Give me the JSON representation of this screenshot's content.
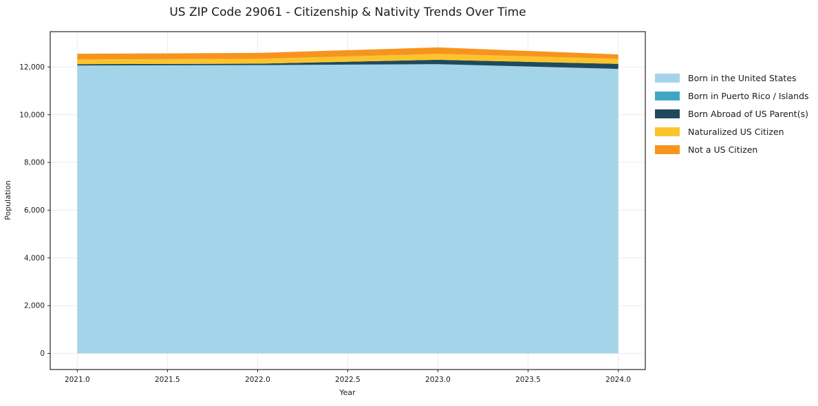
{
  "header": {
    "title": "US ZIP Code 29061 - Citizenship & Nativity Trends Over Time"
  },
  "axes": {
    "xlabel": "Year",
    "ylabel": "Population"
  },
  "legend": {
    "position": "outside-right",
    "items": [
      {
        "label": "Born in the United States",
        "color": "#a4d4e9"
      },
      {
        "label": "Born in Puerto Rico / Islands",
        "color": "#41a6c4"
      },
      {
        "label": "Born Abroad of US Parent(s)",
        "color": "#20495c"
      },
      {
        "label": "Naturalized US Citizen",
        "color": "#fcc42c"
      },
      {
        "label": "Not a US Citizen",
        "color": "#f7941e"
      }
    ]
  },
  "chart_data": {
    "type": "area",
    "stacked": true,
    "title": "US ZIP Code 29061 - Citizenship & Nativity Trends Over Time",
    "xlabel": "Year",
    "ylabel": "Population",
    "x": [
      2021,
      2022,
      2023,
      2024
    ],
    "series": [
      {
        "name": "Born in the United States",
        "color": "#a4d4e9",
        "values": [
          12060,
          12080,
          12120,
          11920
        ]
      },
      {
        "name": "Born in Puerto Rico / Islands",
        "color": "#41a6c4",
        "values": [
          0,
          0,
          0,
          0
        ]
      },
      {
        "name": "Born Abroad of US Parent(s)",
        "color": "#20495c",
        "values": [
          60,
          60,
          180,
          210
        ]
      },
      {
        "name": "Naturalized US Citizen",
        "color": "#fcc42c",
        "values": [
          195,
          200,
          250,
          210
        ]
      },
      {
        "name": "Not a US Citizen",
        "color": "#f7941e",
        "values": [
          240,
          250,
          270,
          185
        ]
      }
    ],
    "stack_totals": [
      12555,
      12590,
      12820,
      12525
    ],
    "xlim": [
      2020.85,
      2024.15
    ],
    "ylim": [
      -678,
      13480
    ],
    "x_ticks": [
      2021.0,
      2021.5,
      2022.0,
      2022.5,
      2023.0,
      2023.5,
      2024.0
    ],
    "x_tick_labels": [
      "2021.0",
      "2021.5",
      "2022.0",
      "2022.5",
      "2023.0",
      "2023.5",
      "2024.0"
    ],
    "y_ticks": [
      0,
      2000,
      4000,
      6000,
      8000,
      10000,
      12000
    ],
    "y_tick_labels": [
      "0",
      "2,000",
      "4,000",
      "6,000",
      "8,000",
      "10,000",
      "12,000"
    ],
    "grid": true,
    "grid_color": "#ebebeb",
    "spine_color": "#262626",
    "tick_label_color": "#1a1a1a",
    "legend_position": "outside-right"
  }
}
